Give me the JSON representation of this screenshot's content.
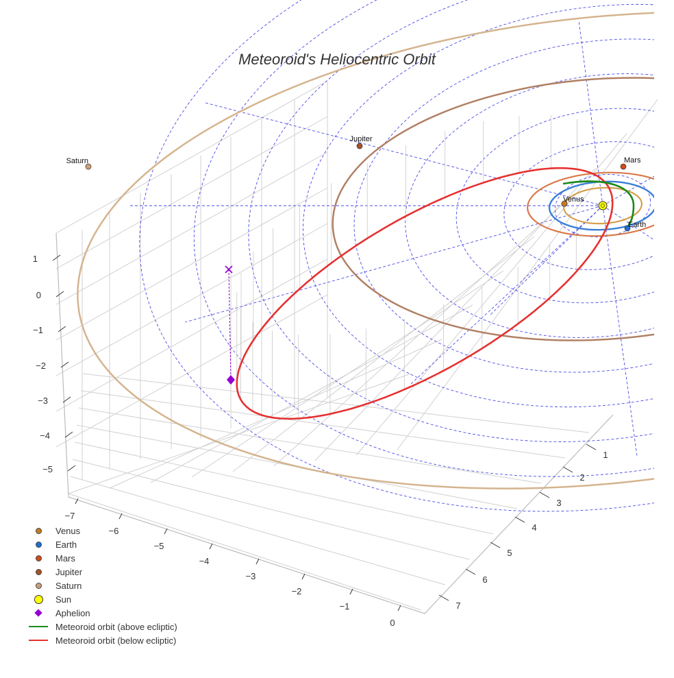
{
  "chart_data": {
    "type": "scatter",
    "title": "Meteoroid's Heliocentric Orbit",
    "x_ticks": [
      "−7",
      "−6",
      "−5",
      "−4",
      "−3",
      "−2",
      "−1",
      "0"
    ],
    "y_ticks": [
      "1",
      "2",
      "3",
      "4",
      "5",
      "6",
      "7"
    ],
    "z_ticks": [
      "1",
      "0",
      "−1",
      "−2",
      "−3",
      "−4",
      "−5"
    ],
    "planets": [
      {
        "name": "Venus",
        "color": "#c67a1f"
      },
      {
        "name": "Earth",
        "color": "#1f6fd1"
      },
      {
        "name": "Mars",
        "color": "#d14a1a"
      },
      {
        "name": "Jupiter",
        "color": "#a8512a"
      },
      {
        "name": "Saturn",
        "color": "#c9a07a"
      }
    ],
    "orbit_colors": {
      "Venus": "#d4a04e",
      "Earth": "#3a7fd6",
      "Mars": "#d97a4a",
      "Jupiter": "#b08064",
      "Saturn": "#d4b48e"
    },
    "sun": {
      "name": "Sun",
      "color": "#ffff00"
    },
    "aphelion": {
      "name": "Aphelion",
      "color": "#9400d3"
    },
    "meteoroid_orbit": [
      {
        "name": "Meteoroid orbit (above ecliptic)",
        "color": "#1a8a1a"
      },
      {
        "name": "Meteoroid orbit (below ecliptic)",
        "color": "#e63030"
      }
    ],
    "grid": true,
    "legend_position": "bottom-left"
  }
}
